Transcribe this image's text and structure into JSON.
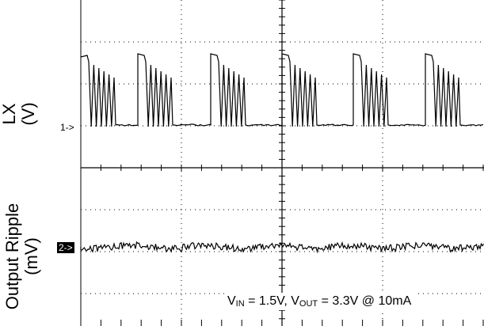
{
  "chart_data": [
    {
      "type": "line",
      "channel": "1",
      "ylabel_line1": "LX",
      "ylabel_line2": "(V)",
      "marker": "1->",
      "description_pattern": "switching bursts",
      "bursts": [
        {
          "t_start": 0.0,
          "t_end": 0.42,
          "ringing_cycles": 5
        },
        {
          "t_start": 1.15,
          "t_end": 1.55,
          "ringing_cycles": 5
        },
        {
          "t_start": 2.25,
          "t_end": 2.65,
          "ringing_cycles": 5
        },
        {
          "t_start": 3.35,
          "t_end": 3.75,
          "ringing_cycles": 5
        },
        {
          "t_start": 4.45,
          "t_end": 4.85,
          "ringing_cycles": 5
        },
        {
          "t_start": 5.45,
          "t_end": 5.85,
          "ringing_cycles": 5
        }
      ]
    },
    {
      "type": "line",
      "channel": "2",
      "ylabel_line1": "Output Ripple",
      "ylabel_line2": "(mV)",
      "marker": "2->"
    }
  ],
  "grid": {
    "x_divisions": 10,
    "y_divisions": 8
  },
  "conditions": {
    "vin_main": "V",
    "vin_sub": "IN",
    "vin_rest": " = 1.5V, ",
    "vout_main": "V",
    "vout_sub": "OUT",
    "vout_rest": " = 3.3V @ 10mA"
  },
  "colors": {
    "trace": "#000000",
    "grid": "#000000",
    "background": "#ffffff",
    "marker2_bg": "#000000"
  }
}
